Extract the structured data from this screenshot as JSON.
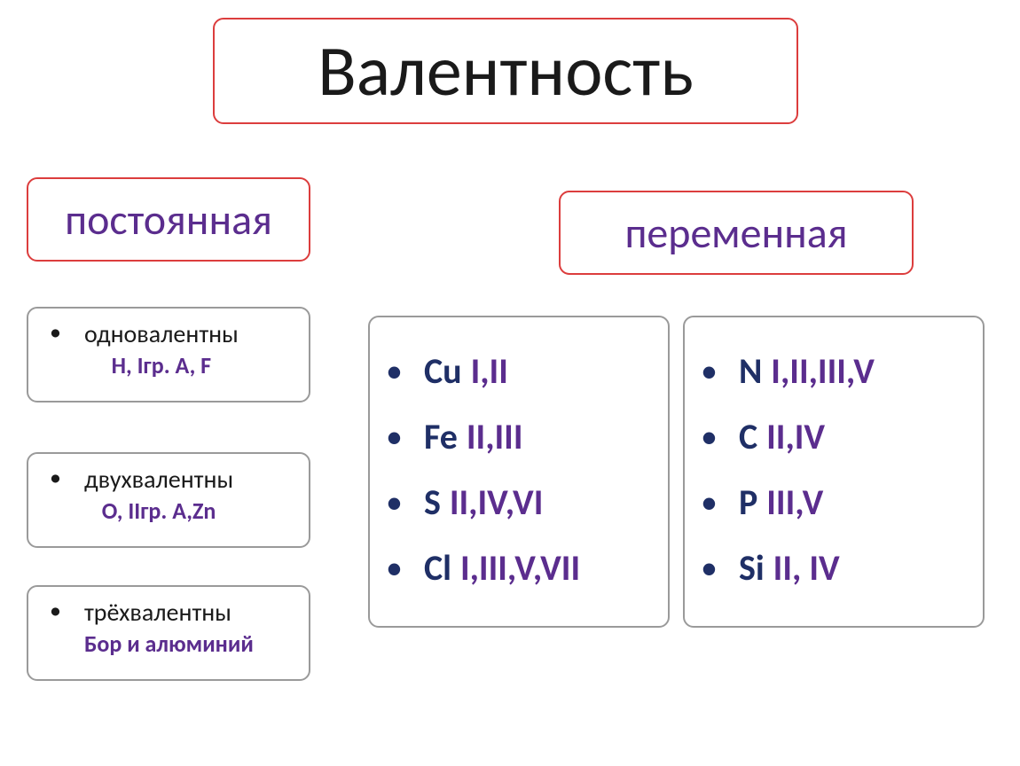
{
  "colors": {
    "border_red": "#dc3d3d",
    "border_gray": "#9a9a9a",
    "text_black": "#1a1a1a",
    "text_purple": "#5b2d8e",
    "text_navy": "#1f2f66",
    "background": "#ffffff"
  },
  "fonts": {
    "title_size": 80,
    "subhead_size": 48,
    "constant_label_size": 28,
    "constant_elems_size": 26,
    "variable_size": 40
  },
  "title": "Валентность",
  "subheads": {
    "constant": "постоянная",
    "variable": "переменная"
  },
  "constant_groups": [
    {
      "label": "одновалентны",
      "elements": "H, Iгр. А, F"
    },
    {
      "label": "двухвалентны",
      "elements": "O, IIгр. А,Zn"
    },
    {
      "label": "трёхвалентны",
      "elements": "Бор и алюминий"
    }
  ],
  "variable_left": [
    {
      "symbol": "Cu",
      "values": "I,II"
    },
    {
      "symbol": "Fe",
      "values": "II,III"
    },
    {
      "symbol": "S",
      "values": "II,IV,VI"
    },
    {
      "symbol": "Cl",
      "values": "I,III,V,VII"
    }
  ],
  "variable_right": [
    {
      "symbol": "N",
      "values": "I,II,III,V"
    },
    {
      "symbol": "C",
      "values": "II,IV"
    },
    {
      "symbol": "P",
      "values": "III,V"
    },
    {
      "symbol": "Si",
      "values": "II, IV"
    }
  ]
}
